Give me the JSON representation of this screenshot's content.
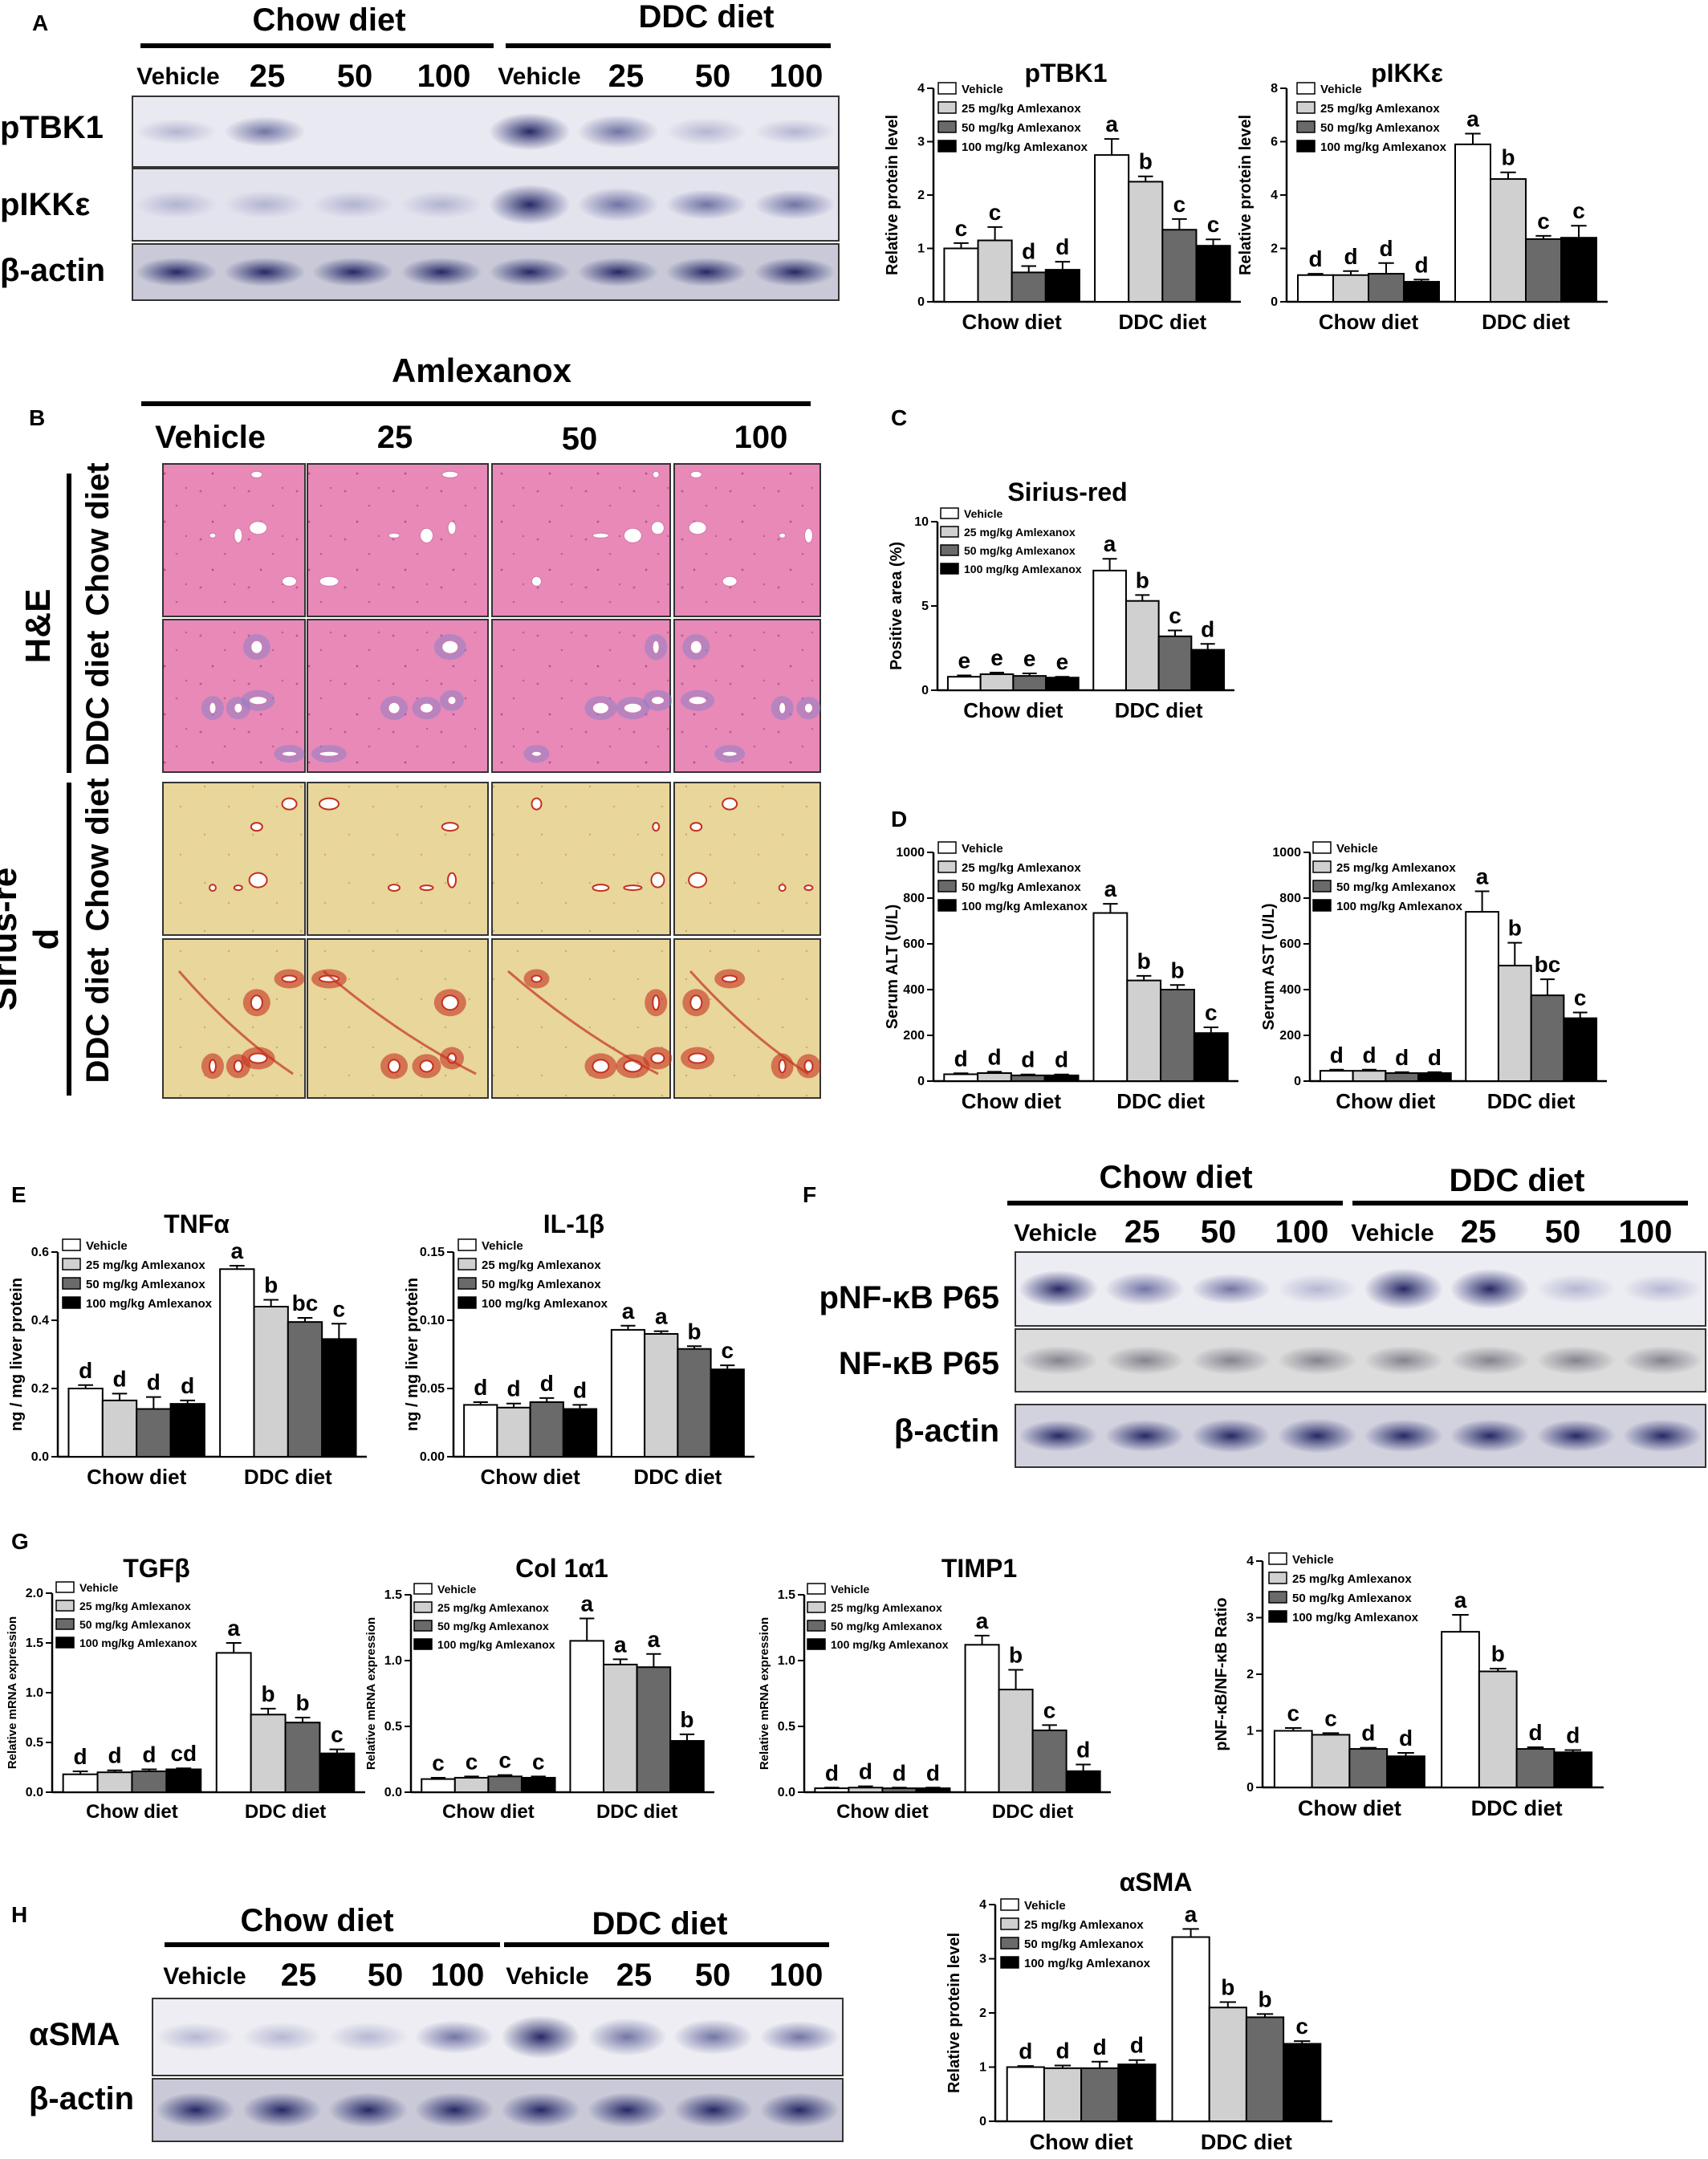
{
  "legend": [
    "Vehicle",
    "25 mg/kg Amlexanox",
    "50 mg/kg Amlexanox",
    "100 mg/kg Amlexanox"
  ],
  "series_colors": [
    "#ffffff",
    "#d0d0d0",
    "#6a6a6a",
    "#000000"
  ],
  "groups": [
    "Chow diet",
    "DDC diet"
  ],
  "doses": [
    "Vehicle",
    "25",
    "50",
    "100"
  ],
  "panel_letters": {
    "A": "A",
    "B": "B",
    "C": "C",
    "D": "D",
    "E": "E",
    "F": "F",
    "G": "G",
    "H": "H"
  },
  "blot_A": {
    "rows": [
      "pTBK1",
      "pIKKε",
      "β-actin"
    ]
  },
  "blot_F": {
    "rows": [
      "pNF-κB P65",
      "NF-κB P65",
      "β-actin"
    ]
  },
  "blot_H": {
    "rows": [
      "αSMA",
      "β-actin"
    ]
  },
  "histology": {
    "title": "Amlexanox",
    "stains": [
      "H&E",
      "Sirius-re\nd"
    ],
    "rows": [
      "Chow diet",
      "DDC diet",
      "Chow diet",
      "DDC diet"
    ]
  },
  "chart_data": [
    {
      "id": "pTBK1",
      "type": "bar",
      "title": "pTBK1",
      "ylabel": "Relative protein level",
      "ylim": [
        0,
        4
      ],
      "yticks": [
        0,
        1,
        2,
        3,
        4
      ],
      "categories": [
        "Chow diet",
        "DDC diet"
      ],
      "series": [
        {
          "name": "Vehicle",
          "values": [
            1.0,
            2.75
          ]
        },
        {
          "name": "25 mg/kg Amlexanox",
          "values": [
            1.15,
            2.25
          ]
        },
        {
          "name": "50 mg/kg Amlexanox",
          "values": [
            0.55,
            1.35
          ]
        },
        {
          "name": "100 mg/kg Amlexanox",
          "values": [
            0.6,
            1.05
          ]
        }
      ],
      "errors": [
        [
          0.1,
          0.3
        ],
        [
          0.25,
          0.1
        ],
        [
          0.12,
          0.2
        ],
        [
          0.15,
          0.12
        ]
      ],
      "labels": [
        [
          "c",
          "a"
        ],
        [
          "c",
          "b"
        ],
        [
          "d",
          "c"
        ],
        [
          "d",
          "c"
        ]
      ]
    },
    {
      "id": "pIKKe",
      "type": "bar",
      "title": "pIKKε",
      "ylabel": "Relative protein level",
      "ylim": [
        0,
        8
      ],
      "yticks": [
        0,
        2,
        4,
        6,
        8
      ],
      "categories": [
        "Chow diet",
        "DDC diet"
      ],
      "series": [
        {
          "name": "Vehicle",
          "values": [
            1.0,
            5.9
          ]
        },
        {
          "name": "25 mg/kg Amlexanox",
          "values": [
            1.0,
            4.6
          ]
        },
        {
          "name": "50 mg/kg Amlexanox",
          "values": [
            1.05,
            2.35
          ]
        },
        {
          "name": "100 mg/kg Amlexanox",
          "values": [
            0.75,
            2.4
          ]
        }
      ],
      "errors": [
        [
          0.05,
          0.4
        ],
        [
          0.15,
          0.25
        ],
        [
          0.4,
          0.12
        ],
        [
          0.08,
          0.45
        ]
      ],
      "labels": [
        [
          "d",
          "a"
        ],
        [
          "d",
          "b"
        ],
        [
          "d",
          "c"
        ],
        [
          "d",
          "c"
        ]
      ]
    },
    {
      "id": "Sirius",
      "type": "bar",
      "title": "Sirius-red",
      "ylabel": "Positive area (%)",
      "ylim": [
        0,
        10
      ],
      "yticks": [
        0,
        5,
        10
      ],
      "categories": [
        "Chow diet",
        "DDC diet"
      ],
      "series": [
        {
          "name": "Vehicle",
          "values": [
            0.8,
            7.1
          ]
        },
        {
          "name": "25 mg/kg Amlexanox",
          "values": [
            0.95,
            5.3
          ]
        },
        {
          "name": "50 mg/kg Amlexanox",
          "values": [
            0.85,
            3.2
          ]
        },
        {
          "name": "100 mg/kg Amlexanox",
          "values": [
            0.75,
            2.4
          ]
        }
      ],
      "errors": [
        [
          0.08,
          0.7
        ],
        [
          0.1,
          0.35
        ],
        [
          0.15,
          0.35
        ],
        [
          0.05,
          0.35
        ]
      ],
      "labels": [
        [
          "e",
          "a"
        ],
        [
          "e",
          "b"
        ],
        [
          "e",
          "c"
        ],
        [
          "e",
          "d"
        ]
      ]
    },
    {
      "id": "ALT",
      "type": "bar",
      "title": "",
      "ylabel": "Serum ALT (U/L)",
      "ylim": [
        0,
        1000
      ],
      "yticks": [
        0,
        200,
        400,
        600,
        800,
        1000
      ],
      "categories": [
        "Chow diet",
        "DDC diet"
      ],
      "series": [
        {
          "name": "Vehicle",
          "values": [
            30,
            735
          ]
        },
        {
          "name": "25 mg/kg Amlexanox",
          "values": [
            35,
            440
          ]
        },
        {
          "name": "50 mg/kg Amlexanox",
          "values": [
            25,
            400
          ]
        },
        {
          "name": "100 mg/kg Amlexanox",
          "values": [
            25,
            210
          ]
        }
      ],
      "errors": [
        [
          4,
          40
        ],
        [
          6,
          20
        ],
        [
          4,
          20
        ],
        [
          4,
          25
        ]
      ],
      "labels": [
        [
          "d",
          "a"
        ],
        [
          "d",
          "b"
        ],
        [
          "d",
          "b"
        ],
        [
          "d",
          "c"
        ]
      ]
    },
    {
      "id": "AST",
      "type": "bar",
      "title": "",
      "ylabel": "Serum AST (U/L)",
      "ylim": [
        0,
        1000
      ],
      "yticks": [
        0,
        200,
        400,
        600,
        800,
        1000
      ],
      "categories": [
        "Chow diet",
        "DDC diet"
      ],
      "series": [
        {
          "name": "Vehicle",
          "values": [
            45,
            740
          ]
        },
        {
          "name": "25 mg/kg Amlexanox",
          "values": [
            45,
            505
          ]
        },
        {
          "name": "50 mg/kg Amlexanox",
          "values": [
            35,
            375
          ]
        },
        {
          "name": "100 mg/kg Amlexanox",
          "values": [
            35,
            275
          ]
        }
      ],
      "errors": [
        [
          5,
          90
        ],
        [
          5,
          100
        ],
        [
          4,
          70
        ],
        [
          4,
          25
        ]
      ],
      "labels": [
        [
          "d",
          "a"
        ],
        [
          "d",
          "b"
        ],
        [
          "d",
          "bc"
        ],
        [
          "d",
          "c"
        ]
      ]
    },
    {
      "id": "TNFa",
      "type": "bar",
      "title": "TNFα",
      "ylabel": "ng / mg liver protein",
      "ylim": [
        0,
        0.6
      ],
      "yticks": [
        0.0,
        0.2,
        0.4,
        0.6
      ],
      "categories": [
        "Chow diet",
        "DDC diet"
      ],
      "series": [
        {
          "name": "Vehicle",
          "values": [
            0.2,
            0.55
          ]
        },
        {
          "name": "25 mg/kg Amlexanox",
          "values": [
            0.165,
            0.44
          ]
        },
        {
          "name": "50 mg/kg Amlexanox",
          "values": [
            0.14,
            0.395
          ]
        },
        {
          "name": "100 mg/kg Amlexanox",
          "values": [
            0.155,
            0.345
          ]
        }
      ],
      "errors": [
        [
          0.01,
          0.01
        ],
        [
          0.02,
          0.02
        ],
        [
          0.035,
          0.012
        ],
        [
          0.01,
          0.045
        ]
      ],
      "labels": [
        [
          "d",
          "a"
        ],
        [
          "d",
          "b"
        ],
        [
          "d",
          "bc"
        ],
        [
          "d",
          "c"
        ]
      ]
    },
    {
      "id": "IL1b",
      "type": "bar",
      "title": "IL-1β",
      "ylabel": "ng / mg liver protein",
      "ylim": [
        0,
        0.15
      ],
      "yticks": [
        0.0,
        0.05,
        0.1,
        0.15
      ],
      "categories": [
        "Chow diet",
        "DDC diet"
      ],
      "series": [
        {
          "name": "Vehicle",
          "values": [
            0.038,
            0.093
          ]
        },
        {
          "name": "25 mg/kg Amlexanox",
          "values": [
            0.036,
            0.09
          ]
        },
        {
          "name": "50 mg/kg Amlexanox",
          "values": [
            0.04,
            0.079
          ]
        },
        {
          "name": "100 mg/kg Amlexanox",
          "values": [
            0.035,
            0.064
          ]
        }
      ],
      "errors": [
        [
          0.002,
          0.003
        ],
        [
          0.003,
          0.002
        ],
        [
          0.003,
          0.002
        ],
        [
          0.003,
          0.003
        ]
      ],
      "labels": [
        [
          "d",
          "a"
        ],
        [
          "d",
          "a"
        ],
        [
          "d",
          "b"
        ],
        [
          "d",
          "c"
        ]
      ]
    },
    {
      "id": "TGFb",
      "type": "bar",
      "title": "TGFβ",
      "ylabel": "Relative mRNA expression",
      "ylim": [
        0,
        2.0
      ],
      "yticks": [
        0.0,
        0.5,
        1.0,
        1.5,
        2.0
      ],
      "categories": [
        "Chow diet",
        "DDC diet"
      ],
      "series": [
        {
          "name": "Vehicle",
          "values": [
            0.18,
            1.4
          ]
        },
        {
          "name": "25 mg/kg Amlexanox",
          "values": [
            0.2,
            0.78
          ]
        },
        {
          "name": "50 mg/kg Amlexanox",
          "values": [
            0.21,
            0.7
          ]
        },
        {
          "name": "100 mg/kg Amlexanox",
          "values": [
            0.23,
            0.39
          ]
        }
      ],
      "errors": [
        [
          0.03,
          0.1
        ],
        [
          0.02,
          0.06
        ],
        [
          0.02,
          0.05
        ],
        [
          0.01,
          0.04
        ]
      ],
      "labels": [
        [
          "d",
          "a"
        ],
        [
          "d",
          "b"
        ],
        [
          "d",
          "b"
        ],
        [
          "cd",
          "c"
        ]
      ]
    },
    {
      "id": "Col1a1",
      "type": "bar",
      "title": "Col 1α1",
      "ylabel": "Relative mRNA expression",
      "ylim": [
        0,
        1.5
      ],
      "yticks": [
        0.0,
        0.5,
        1.0,
        1.5
      ],
      "categories": [
        "Chow diet",
        "DDC diet"
      ],
      "series": [
        {
          "name": "Vehicle",
          "values": [
            0.1,
            1.15
          ]
        },
        {
          "name": "25 mg/kg Amlexanox",
          "values": [
            0.11,
            0.97
          ]
        },
        {
          "name": "50 mg/kg Amlexanox",
          "values": [
            0.12,
            0.95
          ]
        },
        {
          "name": "100 mg/kg Amlexanox",
          "values": [
            0.11,
            0.39
          ]
        }
      ],
      "errors": [
        [
          0.01,
          0.17
        ],
        [
          0.01,
          0.04
        ],
        [
          0.01,
          0.1
        ],
        [
          0.01,
          0.05
        ]
      ],
      "labels": [
        [
          "c",
          "a"
        ],
        [
          "c",
          "a"
        ],
        [
          "c",
          "a"
        ],
        [
          "c",
          "b"
        ]
      ]
    },
    {
      "id": "TIMP1",
      "type": "bar",
      "title": "TIMP1",
      "ylabel": "Relative mRNA expression",
      "ylim": [
        0,
        1.5
      ],
      "yticks": [
        0.0,
        0.5,
        1.0,
        1.5
      ],
      "categories": [
        "Chow diet",
        "DDC diet"
      ],
      "series": [
        {
          "name": "Vehicle",
          "values": [
            0.03,
            1.12
          ]
        },
        {
          "name": "25 mg/kg Amlexanox",
          "values": [
            0.035,
            0.78
          ]
        },
        {
          "name": "50 mg/kg Amlexanox",
          "values": [
            0.03,
            0.47
          ]
        },
        {
          "name": "100 mg/kg Amlexanox",
          "values": [
            0.03,
            0.16
          ]
        }
      ],
      "errors": [
        [
          0.005,
          0.07
        ],
        [
          0.01,
          0.15
        ],
        [
          0.005,
          0.04
        ],
        [
          0.005,
          0.05
        ]
      ],
      "labels": [
        [
          "d",
          "a"
        ],
        [
          "d",
          "b"
        ],
        [
          "d",
          "c"
        ],
        [
          "d",
          "d"
        ]
      ]
    },
    {
      "id": "pNFkB",
      "type": "bar",
      "title": "",
      "ylabel": "pNF-κB/NF-κB Ratio",
      "ylim": [
        0,
        4
      ],
      "yticks": [
        0,
        1,
        2,
        3,
        4
      ],
      "categories": [
        "Chow diet",
        "DDC diet"
      ],
      "series": [
        {
          "name": "Vehicle",
          "values": [
            1.0,
            2.75
          ]
        },
        {
          "name": "25 mg/kg Amlexanox",
          "values": [
            0.93,
            2.05
          ]
        },
        {
          "name": "50 mg/kg Amlexanox",
          "values": [
            0.68,
            0.68
          ]
        },
        {
          "name": "100 mg/kg Amlexanox",
          "values": [
            0.55,
            0.62
          ]
        }
      ],
      "errors": [
        [
          0.05,
          0.3
        ],
        [
          0.03,
          0.05
        ],
        [
          0.02,
          0.03
        ],
        [
          0.06,
          0.04
        ]
      ],
      "labels": [
        [
          "c",
          "a"
        ],
        [
          "c",
          "b"
        ],
        [
          "d",
          "d"
        ],
        [
          "d",
          "d"
        ]
      ]
    },
    {
      "id": "aSMA",
      "type": "bar",
      "title": "αSMA",
      "ylabel": "Relative protein level",
      "ylim": [
        0,
        4
      ],
      "yticks": [
        0,
        1,
        2,
        3,
        4
      ],
      "categories": [
        "Chow diet",
        "DDC diet"
      ],
      "series": [
        {
          "name": "Vehicle",
          "values": [
            1.0,
            3.4
          ]
        },
        {
          "name": "25 mg/kg Amlexanox",
          "values": [
            0.98,
            2.1
          ]
        },
        {
          "name": "50 mg/kg Amlexanox",
          "values": [
            0.98,
            1.92
          ]
        },
        {
          "name": "100 mg/kg Amlexanox",
          "values": [
            1.05,
            1.43
          ]
        }
      ],
      "errors": [
        [
          0.02,
          0.15
        ],
        [
          0.05,
          0.1
        ],
        [
          0.12,
          0.06
        ],
        [
          0.08,
          0.05
        ]
      ],
      "labels": [
        [
          "d",
          "a"
        ],
        [
          "d",
          "b"
        ],
        [
          "d",
          "b"
        ],
        [
          "d",
          "c"
        ]
      ]
    }
  ]
}
